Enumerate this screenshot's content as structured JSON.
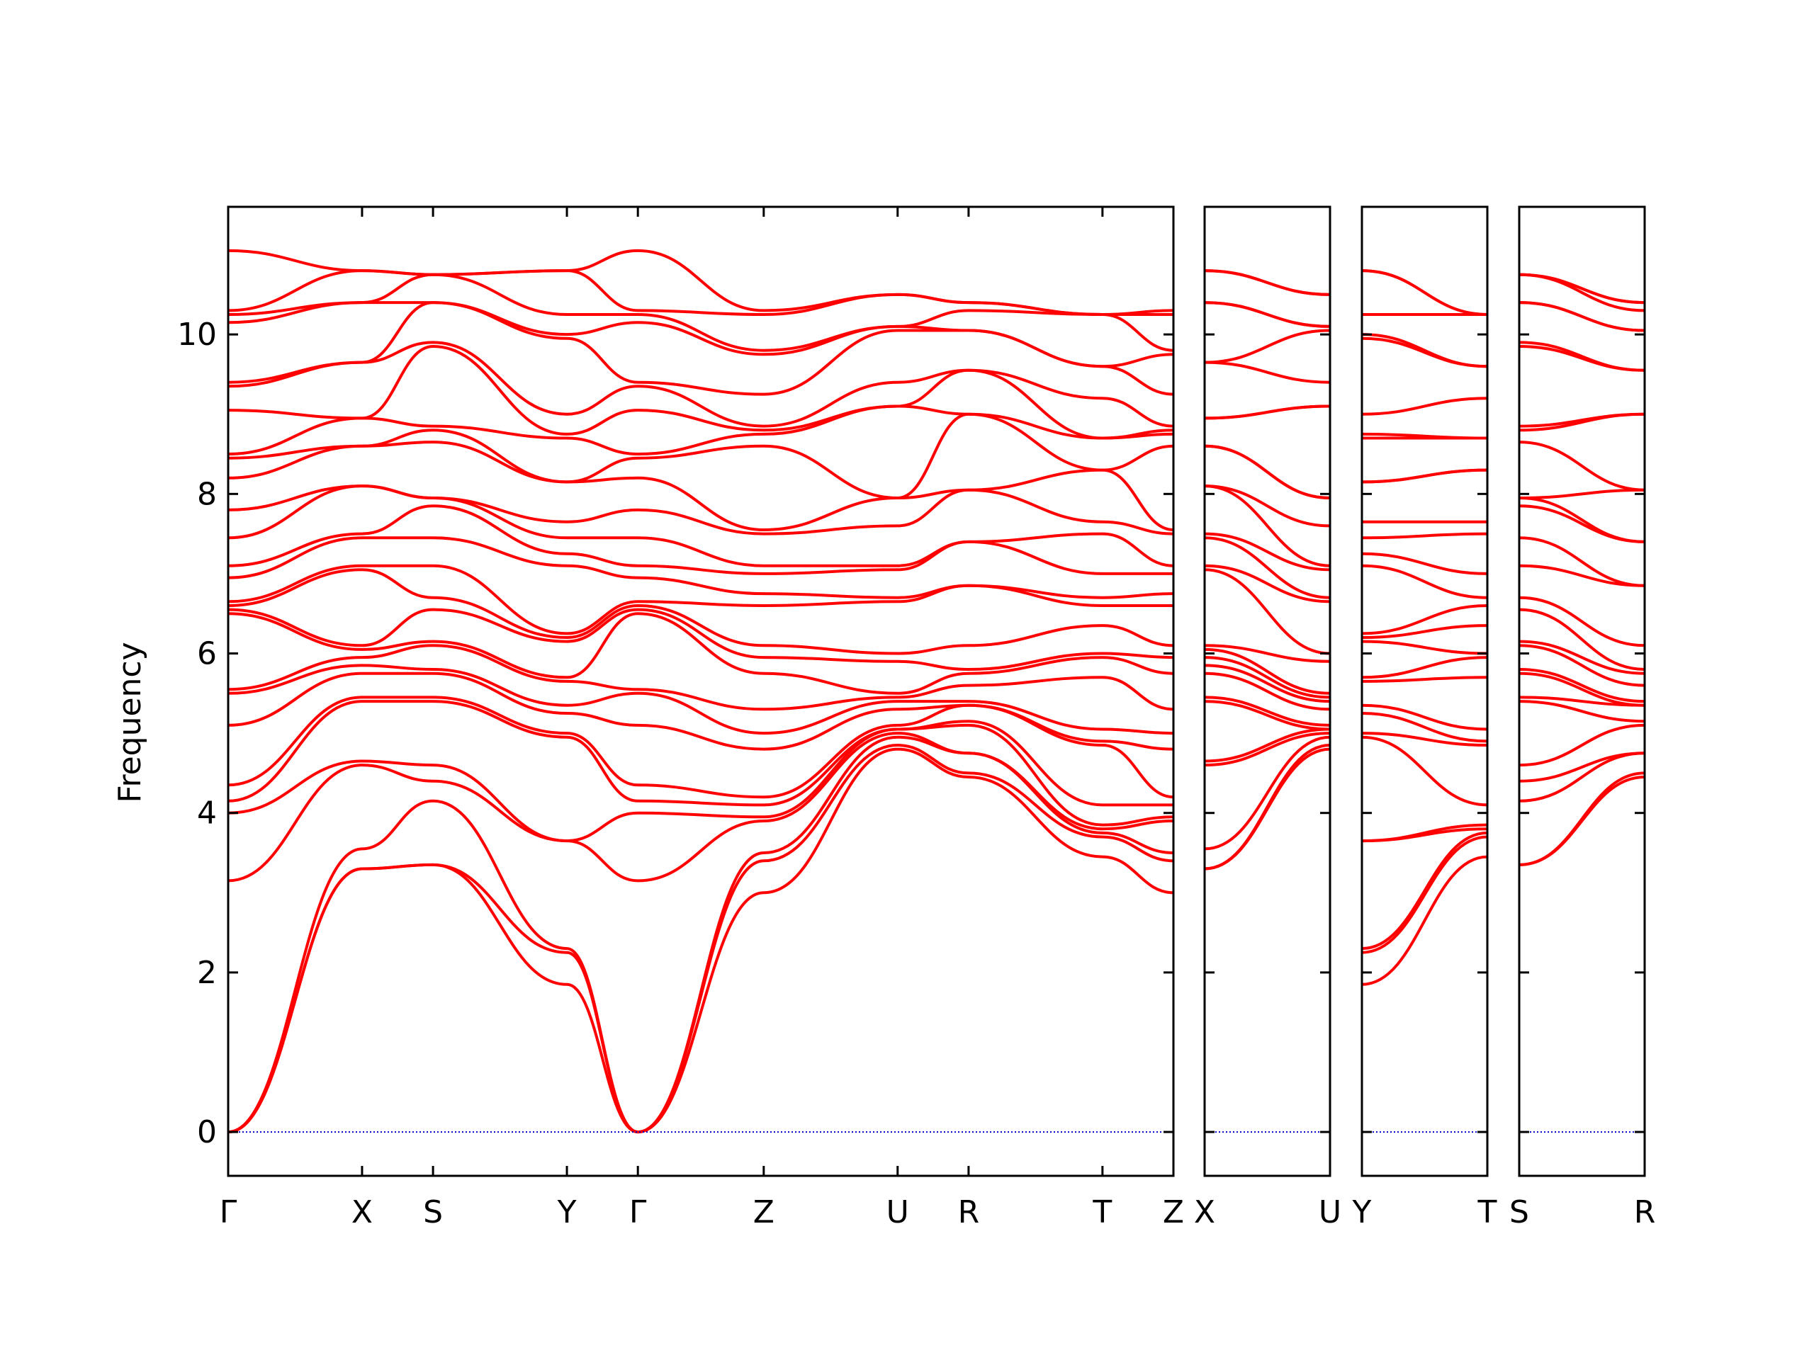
{
  "chart_data": {
    "type": "line",
    "ylabel": "Frequency",
    "xlabel": "",
    "ylim": [
      -0.55,
      11.6
    ],
    "yticks": [
      0,
      2,
      4,
      6,
      8,
      10
    ],
    "grid": false,
    "colors": {
      "bands": "#ff0000",
      "zero_line": "#0000cc",
      "frame": "#000000"
    },
    "panels": [
      {
        "path": [
          "Γ",
          "X",
          "S",
          "Y",
          "Γ",
          "Z",
          "U",
          "R",
          "T",
          "Z"
        ],
        "x": [
          0,
          1,
          1.53,
          2.53,
          3.06,
          4.0,
          5.0,
          5.53,
          6.53,
          7.06
        ],
        "bands_at_points": [
          [
            0,
            0,
            0,
            3.15,
            4.0,
            4.15,
            4.35,
            5.1,
            5.5,
            5.55,
            6.5,
            6.55,
            6.6,
            6.65,
            6.95,
            7.1,
            7.45,
            7.8,
            8.2,
            8.45,
            8.5,
            9.05,
            9.35,
            9.4,
            10.15,
            10.25,
            10.3,
            11.05
          ],
          [
            3.3,
            3.3,
            3.55,
            4.6,
            4.65,
            5.4,
            5.45,
            5.75,
            5.85,
            5.95,
            6.05,
            6.1,
            7.05,
            7.1,
            7.45,
            7.5,
            8.1,
            8.1,
            8.6,
            8.6,
            8.95,
            8.95,
            9.65,
            9.65,
            10.4,
            10.4,
            10.8,
            10.8
          ],
          [
            3.35,
            3.35,
            4.15,
            4.4,
            4.6,
            5.4,
            5.45,
            5.75,
            5.8,
            6.1,
            6.15,
            6.55,
            6.7,
            7.1,
            7.45,
            7.85,
            7.95,
            7.95,
            8.65,
            8.8,
            8.85,
            9.85,
            9.9,
            10.4,
            10.4,
            10.75,
            10.75,
            10.75
          ],
          [
            1.85,
            2.25,
            2.3,
            3.65,
            3.65,
            4.95,
            5.0,
            5.25,
            5.35,
            5.65,
            5.7,
            6.15,
            6.2,
            6.25,
            7.1,
            7.25,
            7.45,
            7.65,
            8.15,
            8.15,
            8.7,
            8.75,
            9.0,
            9.95,
            10.0,
            10.25,
            10.8,
            10.8
          ],
          [
            0,
            0,
            0,
            3.15,
            4.0,
            4.15,
            4.35,
            5.1,
            5.5,
            5.55,
            6.5,
            6.55,
            6.6,
            6.65,
            6.95,
            7.1,
            7.45,
            7.8,
            8.2,
            8.45,
            8.5,
            9.05,
            9.35,
            9.4,
            10.15,
            10.25,
            10.3,
            11.05
          ],
          [
            3.0,
            3.4,
            3.5,
            3.9,
            3.95,
            4.1,
            4.2,
            4.8,
            5.0,
            5.3,
            5.75,
            5.95,
            6.1,
            6.6,
            6.75,
            7.0,
            7.1,
            7.5,
            7.55,
            8.6,
            8.75,
            8.8,
            8.85,
            9.25,
            9.75,
            9.8,
            10.25,
            10.3
          ],
          [
            4.8,
            4.85,
            4.95,
            5.0,
            5.05,
            5.05,
            5.1,
            5.3,
            5.4,
            5.45,
            5.5,
            5.9,
            6.0,
            6.65,
            6.7,
            7.05,
            7.1,
            7.6,
            7.95,
            7.95,
            9.1,
            9.1,
            9.4,
            10.05,
            10.1,
            10.1,
            10.5,
            10.5
          ],
          [
            4.45,
            4.5,
            4.75,
            4.75,
            5.1,
            5.15,
            5.35,
            5.35,
            5.4,
            5.6,
            5.75,
            5.8,
            6.1,
            6.85,
            6.85,
            7.4,
            7.4,
            8.05,
            8.05,
            9.0,
            9.0,
            9.55,
            9.55,
            10.05,
            10.05,
            10.3,
            10.4,
            10.4
          ],
          [
            3.45,
            3.7,
            3.75,
            3.8,
            3.85,
            4.1,
            4.85,
            4.9,
            5.05,
            5.7,
            5.95,
            6.0,
            6.35,
            6.6,
            6.7,
            7.0,
            7.5,
            7.65,
            8.3,
            8.3,
            8.7,
            8.7,
            9.2,
            9.6,
            9.6,
            10.25,
            10.25,
            10.25
          ],
          [
            3.0,
            3.4,
            3.5,
            3.9,
            3.95,
            4.1,
            4.2,
            4.8,
            5.0,
            5.3,
            5.75,
            5.95,
            6.1,
            6.6,
            6.75,
            7.0,
            7.1,
            7.5,
            7.55,
            8.6,
            8.75,
            8.8,
            8.85,
            9.25,
            9.75,
            9.8,
            10.25,
            10.3
          ]
        ]
      },
      {
        "path": [
          "X",
          "U"
        ],
        "x": [
          0,
          1
        ],
        "bands_at_points": [
          [
            3.3,
            3.3,
            3.55,
            4.6,
            4.65,
            5.4,
            5.45,
            5.75,
            5.85,
            5.95,
            6.05,
            6.1,
            7.05,
            7.1,
            7.45,
            7.5,
            8.1,
            8.1,
            8.6,
            8.6,
            8.95,
            8.95,
            9.65,
            9.65,
            10.4,
            10.4,
            10.8,
            10.8
          ],
          [
            4.8,
            4.85,
            4.95,
            5.0,
            5.05,
            5.05,
            5.1,
            5.3,
            5.4,
            5.45,
            5.5,
            5.9,
            6.0,
            6.65,
            6.7,
            7.05,
            7.1,
            7.6,
            7.95,
            7.95,
            9.1,
            9.1,
            9.4,
            10.05,
            10.1,
            10.1,
            10.5,
            10.5
          ]
        ]
      },
      {
        "path": [
          "Y",
          "T"
        ],
        "x": [
          0,
          1
        ],
        "bands_at_points": [
          [
            1.85,
            2.25,
            2.3,
            3.65,
            3.65,
            4.95,
            5.0,
            5.25,
            5.35,
            5.65,
            5.7,
            6.15,
            6.2,
            6.25,
            7.1,
            7.25,
            7.45,
            7.65,
            8.15,
            8.15,
            8.7,
            8.75,
            9.0,
            9.95,
            10.0,
            10.25,
            10.8,
            10.8
          ],
          [
            3.45,
            3.7,
            3.75,
            3.8,
            3.85,
            4.1,
            4.85,
            4.9,
            5.05,
            5.7,
            5.95,
            6.0,
            6.35,
            6.6,
            6.7,
            7.0,
            7.5,
            7.65,
            8.3,
            8.3,
            8.7,
            8.7,
            9.2,
            9.6,
            9.6,
            10.25,
            10.25,
            10.25
          ]
        ]
      },
      {
        "path": [
          "S",
          "R"
        ],
        "x": [
          0,
          1
        ],
        "bands_at_points": [
          [
            3.35,
            3.35,
            4.15,
            4.4,
            4.6,
            5.4,
            5.45,
            5.75,
            5.8,
            6.1,
            6.15,
            6.55,
            6.7,
            7.1,
            7.45,
            7.85,
            7.95,
            7.95,
            8.65,
            8.8,
            8.85,
            9.85,
            9.9,
            10.4,
            10.4,
            10.75,
            10.75,
            10.75
          ],
          [
            4.45,
            4.5,
            4.75,
            4.75,
            5.1,
            5.15,
            5.35,
            5.35,
            5.4,
            5.6,
            5.75,
            5.8,
            6.1,
            6.85,
            6.85,
            7.4,
            7.4,
            8.05,
            8.05,
            9.0,
            9.0,
            9.55,
            9.55,
            10.05,
            10.05,
            10.3,
            10.4,
            10.4
          ]
        ]
      }
    ]
  }
}
